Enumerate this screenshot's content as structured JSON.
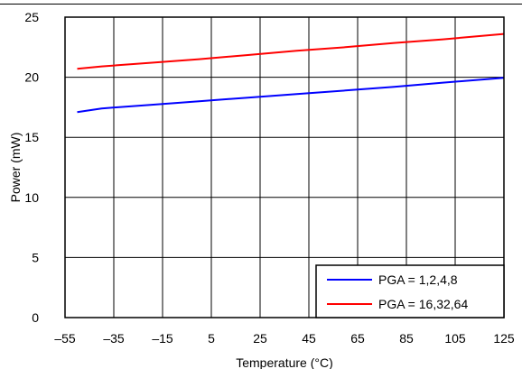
{
  "chart_data": {
    "type": "line",
    "title": "",
    "xlabel": "Temperature (°C)",
    "ylabel": "Power (mW)",
    "xlim": [
      -55,
      125
    ],
    "ylim": [
      0,
      25
    ],
    "xticks": [
      -55,
      -35,
      -15,
      5,
      25,
      45,
      65,
      85,
      105,
      125
    ],
    "yticks": [
      0,
      5,
      10,
      15,
      20,
      25
    ],
    "xtick_labels": [
      "–55",
      "–35",
      "–15",
      "5",
      "25",
      "45",
      "65",
      "85",
      "105",
      "125"
    ],
    "ytick_labels": [
      "0",
      "5",
      "10",
      "15",
      "20",
      "25"
    ],
    "grid": true,
    "legend": "bottom-right",
    "series": [
      {
        "name": "PGA = 1,2,4,8",
        "color": "#0000ff",
        "x": [
          -50,
          -40,
          -20,
          0,
          20,
          40,
          60,
          80,
          100,
          125
        ],
        "y": [
          17.1,
          17.4,
          17.7,
          18.0,
          18.3,
          18.6,
          18.9,
          19.2,
          19.55,
          19.95
        ]
      },
      {
        "name": "PGA = 16,32,64",
        "color": "#ff0000",
        "x": [
          -50,
          -40,
          -20,
          0,
          20,
          40,
          60,
          80,
          100,
          125
        ],
        "y": [
          20.7,
          20.9,
          21.2,
          21.5,
          21.85,
          22.2,
          22.5,
          22.85,
          23.15,
          23.6
        ]
      }
    ]
  }
}
